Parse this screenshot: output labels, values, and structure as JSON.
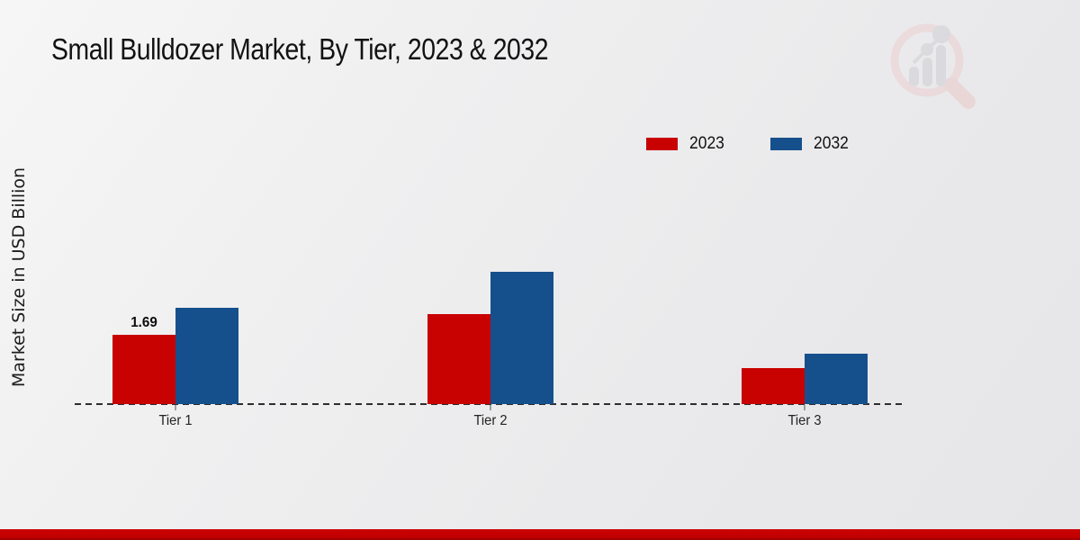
{
  "title": "Small Bulldozer Market, By Tier, 2023 & 2032",
  "y_axis_label": "Market Size in USD Billion",
  "colors": {
    "series_2023": "#C80101",
    "series_2032": "#15508D",
    "footer_strip": "#C00000",
    "baseline": "#2E2E2E",
    "background": "#ECECEE"
  },
  "legend": {
    "position": "top-right",
    "items": [
      {
        "label": "2023",
        "color": "#C80101"
      },
      {
        "label": "2032",
        "color": "#15508D"
      }
    ]
  },
  "chart_data": {
    "type": "bar",
    "title": "Small Bulldozer Market, By Tier, 2023 & 2032",
    "xlabel": "",
    "ylabel": "Market Size in USD Billion",
    "categories": [
      "Tier 1",
      "Tier 2",
      "Tier 3"
    ],
    "series": [
      {
        "name": "2023",
        "color": "#C80101",
        "values": [
          1.69,
          2.2,
          0.88
        ]
      },
      {
        "name": "2032",
        "color": "#15508D",
        "values": [
          2.35,
          3.22,
          1.23
        ]
      }
    ],
    "bar_labels": [
      {
        "series": "2023",
        "category": "Tier 1",
        "text": "1.69"
      }
    ],
    "ylim": [
      0,
      3.5
    ],
    "grid": false,
    "axis_style": "dashed-baseline-only",
    "legend_position": "top-right"
  },
  "watermark": {
    "name": "market-research-magnifier-logo"
  }
}
